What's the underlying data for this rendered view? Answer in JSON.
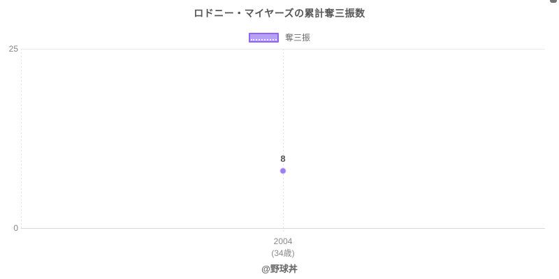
{
  "title": "ロドニー・マイヤーズの累計奪三振数",
  "legend": {
    "label": "奪三振",
    "swatch_fill": "#b7a0f6",
    "swatch_border": "#8f66f5"
  },
  "footer": "@野球丼",
  "chart_data": {
    "type": "line",
    "title": "ロドニー・マイヤーズの累計奪三振数",
    "categories": [
      "2004"
    ],
    "category_sublabels": [
      "(34歳)"
    ],
    "series": [
      {
        "name": "奪三振",
        "values": [
          8
        ],
        "point_color": "#9d7cf4",
        "point_border_color": "#c8b9f8"
      }
    ],
    "ylim": [
      0,
      25
    ],
    "yticks": [
      0,
      25
    ],
    "legend_position": "top",
    "grid": "horizontal solid at yticks, vertical dashed at left edge and category",
    "data_labels": "above points"
  }
}
